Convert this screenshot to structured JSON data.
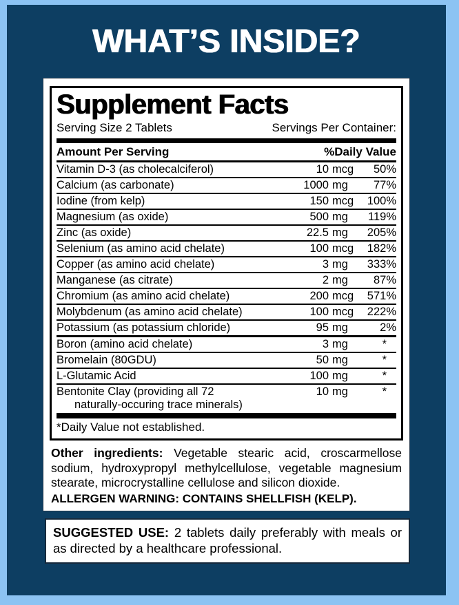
{
  "page": {
    "title": "WHAT’S INSIDE?"
  },
  "colors": {
    "outer_border": "#8cc3f3",
    "background": "#0d3e62",
    "label_background": "#ffffff",
    "text": "#000000",
    "title_text": "#ffffff"
  },
  "supplement_facts": {
    "title": "Supplement Facts",
    "serving_size": "Serving Size 2 Tablets",
    "servings_per_container": "Servings Per Container:",
    "columns": {
      "amount": "Amount Per Serving",
      "daily_value": "%Daily Value"
    },
    "rows": [
      {
        "name": "Vitamin D-3 (as cholecalciferol)",
        "amount": "10",
        "unit": "mcg",
        "dv": "50%"
      },
      {
        "name": "Calcium (as carbonate)",
        "amount": "1000",
        "unit": "mg",
        "dv": "77%"
      },
      {
        "name": "Iodine (from kelp)",
        "amount": "150",
        "unit": "mcg",
        "dv": "100%"
      },
      {
        "name": "Magnesium (as oxide)",
        "amount": "500",
        "unit": "mg",
        "dv": "119%"
      },
      {
        "name": "Zinc (as oxide)",
        "amount": "22.5",
        "unit": "mg",
        "dv": "205%"
      },
      {
        "name": "Selenium (as amino acid chelate)",
        "amount": "100",
        "unit": "mcg",
        "dv": "182%"
      },
      {
        "name": "Copper (as amino acid chelate)",
        "amount": "3",
        "unit": "mg",
        "dv": "333%"
      },
      {
        "name": "Manganese (as citrate)",
        "amount": "2",
        "unit": "mg",
        "dv": "87%"
      },
      {
        "name": "Chromium (as amino acid chelate)",
        "amount": "200",
        "unit": "mcg",
        "dv": "571%"
      },
      {
        "name": "Molybdenum (as amino acid chelate)",
        "amount": "100",
        "unit": "mcg",
        "dv": "222%"
      },
      {
        "name": "Potassium (as potassium chloride)",
        "amount": "95",
        "unit": "mg",
        "dv": "2%"
      }
    ],
    "rows_no_dv": [
      {
        "name": "Boron (amino acid chelate)",
        "amount": "3",
        "unit": "mg",
        "dv": "*"
      },
      {
        "name": "Bromelain (80GDU)",
        "amount": "50",
        "unit": "mg",
        "dv": "*"
      },
      {
        "name": "L-Glutamic Acid",
        "amount": "100",
        "unit": "mg",
        "dv": "*"
      },
      {
        "name": "Bentonite Clay (providing all 72",
        "name_line2": "naturally-occuring trace minerals)",
        "amount": "10",
        "unit": "mg",
        "dv": "*"
      }
    ],
    "footnote": "*Daily Value not established."
  },
  "other_ingredients": {
    "lead": "Other ingredients:",
    "text": "Vegetable stearic acid, croscarmellose sodium, hydroxypropyl methylcellulose, vegetable magnesium stearate, microcrystalline cellulose and silicon dioxide."
  },
  "allergen_warning": "ALLERGEN WARNING: CONTAINS SHELLFISH (KELP).",
  "suggested_use": {
    "lead": "SUGGESTED USE:",
    "text": "2 tablets daily preferably with meals or as directed by a healthcare professional."
  }
}
